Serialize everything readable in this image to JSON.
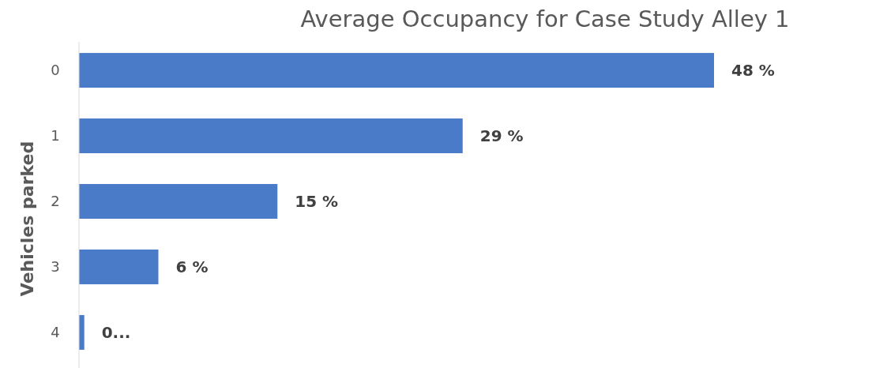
{
  "chart_data": {
    "type": "bar",
    "orientation": "horizontal",
    "title": "Average Occupancy for Case Study Alley 1",
    "ylabel": "Vehicles parked",
    "categories": [
      "0",
      "1",
      "2",
      "3",
      "4"
    ],
    "values": [
      48,
      29,
      15,
      6,
      0.4
    ],
    "value_labels": [
      "48 %",
      "29 %",
      "15 %",
      "6 %",
      "0..."
    ],
    "color": "#4a7bc8"
  }
}
